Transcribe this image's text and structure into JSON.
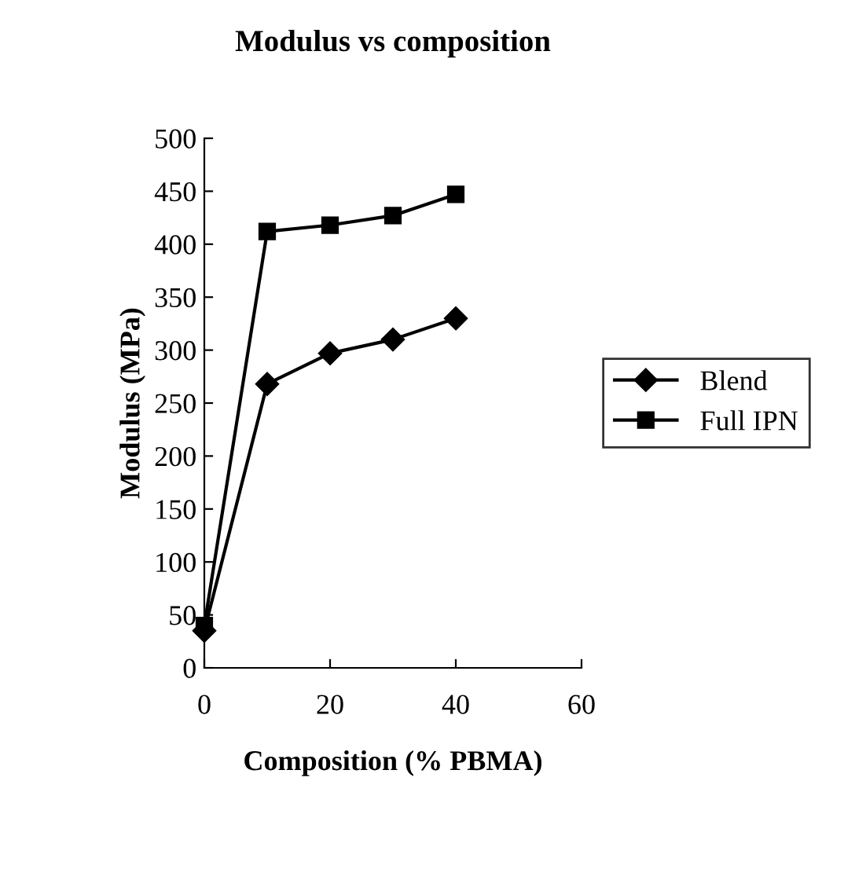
{
  "chart_data": {
    "type": "line",
    "title": "Modulus vs composition",
    "xlabel": "Composition (% PBMA)",
    "ylabel": "Modulus (MPa)",
    "x": [
      0,
      10,
      20,
      30,
      40
    ],
    "series": [
      {
        "name": "Blend",
        "color": "#000000",
        "marker": "diamond",
        "values": [
          35,
          268,
          297,
          310,
          330
        ]
      },
      {
        "name": "Full IPN",
        "color": "#000000",
        "marker": "square",
        "values": [
          40,
          412,
          418,
          427,
          447
        ]
      }
    ],
    "xlim": [
      0,
      60
    ],
    "xticks": [
      0,
      20,
      40,
      60
    ],
    "ylim": [
      0,
      500
    ],
    "yticks": [
      0,
      50,
      100,
      150,
      200,
      250,
      300,
      350,
      400,
      450,
      500
    ],
    "grid": false,
    "legend": "right",
    "line_style": "solid"
  }
}
